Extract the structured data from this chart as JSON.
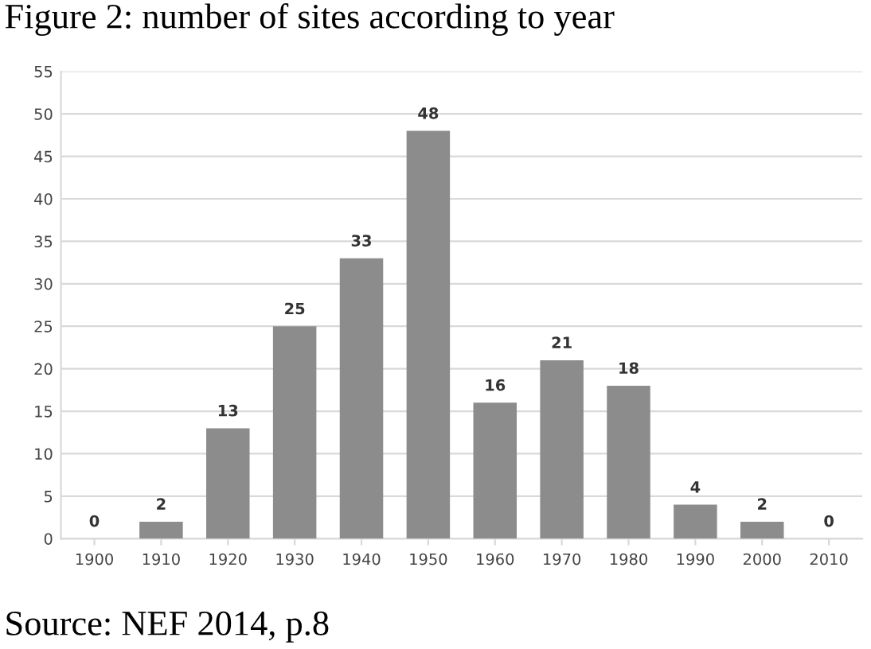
{
  "chart_data": {
    "type": "bar",
    "title": "Figure 2: number of sites according to year",
    "categories": [
      "1900",
      "1910",
      "1920",
      "1930",
      "1940",
      "1950",
      "1960",
      "1970",
      "1980",
      "1990",
      "2000",
      "2010"
    ],
    "values": [
      0,
      2,
      13,
      25,
      33,
      48,
      16,
      21,
      18,
      4,
      2,
      0
    ],
    "color": "#8c8c8c",
    "ylim": [
      0,
      55
    ],
    "yticks": [
      0,
      5,
      10,
      15,
      20,
      25,
      30,
      35,
      40,
      45,
      50,
      55
    ],
    "grid": "y",
    "data_labels": true,
    "annotations": [
      "Source: NEF 2014, p.8"
    ]
  }
}
